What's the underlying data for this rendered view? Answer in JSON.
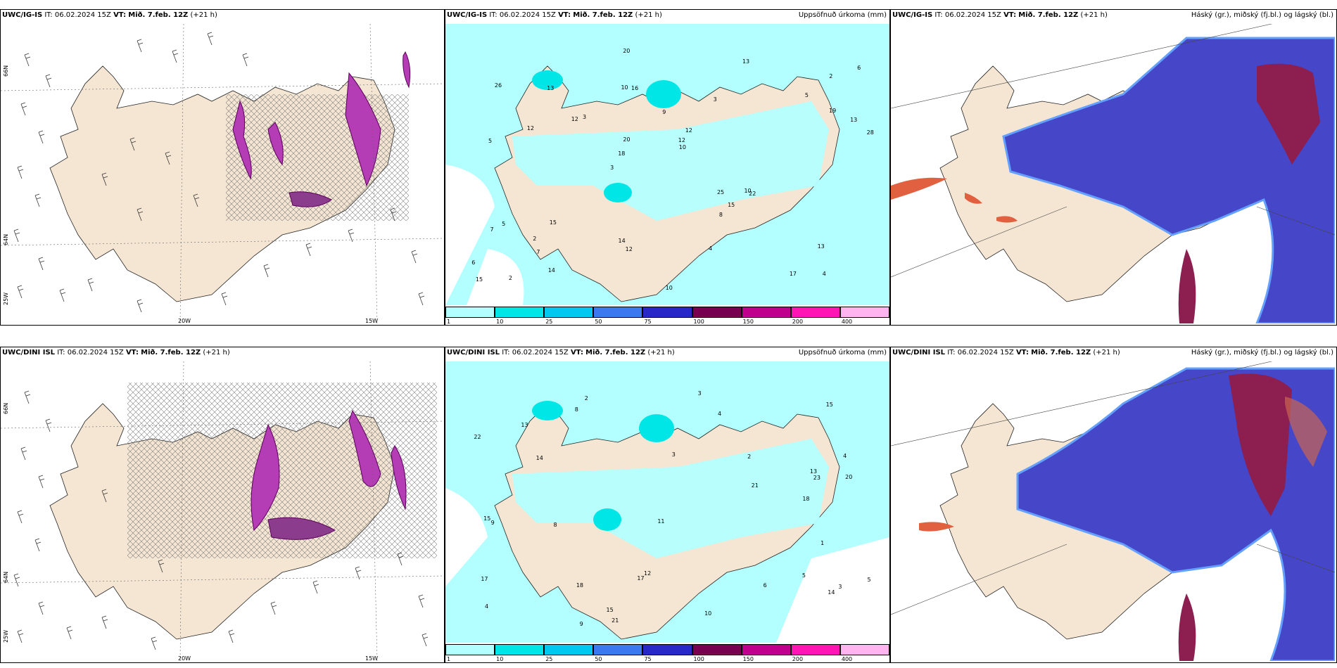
{
  "rows": [
    {
      "model_prefix": "UWC/IG-IS",
      "it_label": "IT:",
      "it_value": "06.02.2024 15Z",
      "vt_label": "VT:",
      "vt_value": "Mið. 7.feb. 12Z",
      "lead": "(+21 h)"
    },
    {
      "model_prefix": "UWC/DINI ISL",
      "it_label": "IT:",
      "it_value": "06.02.2024 15Z",
      "vt_label": "VT:",
      "vt_value": "Mið. 7.feb. 12Z",
      "lead": "(+21 h)"
    }
  ],
  "panel_titles": {
    "precip": "Uppsöfnuð úrkoma (mm)",
    "clouds": "Háský (gr.), miðský (fj.bl.) og lágský (bl.)"
  },
  "axis_labels": {
    "lat_66": "66N",
    "lat_64": "64N",
    "lon_20w": "20W",
    "lon_15w": "15W",
    "lon_25w": "25W"
  },
  "colorbar": {
    "ticks": [
      "1",
      "10",
      "25",
      "50",
      "75",
      "100",
      "150",
      "200",
      "400"
    ],
    "colors": [
      "#b3ffff",
      "#00e6e6",
      "#00c8f0",
      "#3c78f0",
      "#2828c8",
      "#780050",
      "#c0008c",
      "#ff14b4",
      "#ffb4f0"
    ]
  },
  "precip_labels_top": [
    "4",
    "5",
    "2",
    "3",
    "3",
    "2",
    "10",
    "9",
    "5",
    "3",
    "6",
    "7",
    "16",
    "12",
    "22",
    "26",
    "20",
    "28",
    "25",
    "19",
    "18",
    "14",
    "20",
    "13",
    "13",
    "15",
    "17",
    "13",
    "10",
    "10",
    "12",
    "12",
    "8",
    "14",
    "13",
    "12",
    "15",
    "12",
    "10",
    "7",
    "5",
    "6",
    "15",
    "4",
    "2"
  ],
  "precip_labels_bottom": [
    "5",
    "4",
    "3",
    "3",
    "4",
    "2",
    "13",
    "18",
    "15",
    "14",
    "20",
    "22",
    "18",
    "21",
    "17",
    "13",
    "14",
    "8",
    "12",
    "23",
    "15",
    "9",
    "10",
    "21",
    "15",
    "17",
    "3",
    "4",
    "2",
    "5",
    "8",
    "6",
    "9",
    "11",
    "1"
  ],
  "colors": {
    "land": "#f5e6d3",
    "precip_light": "#b3ffff",
    "precip_mid": "#00e6e6",
    "cloud_mid": "#4646c8",
    "cloud_high": "#8c1e50",
    "cloud_low": "#64a0ff",
    "rate": "#b43cb4"
  }
}
